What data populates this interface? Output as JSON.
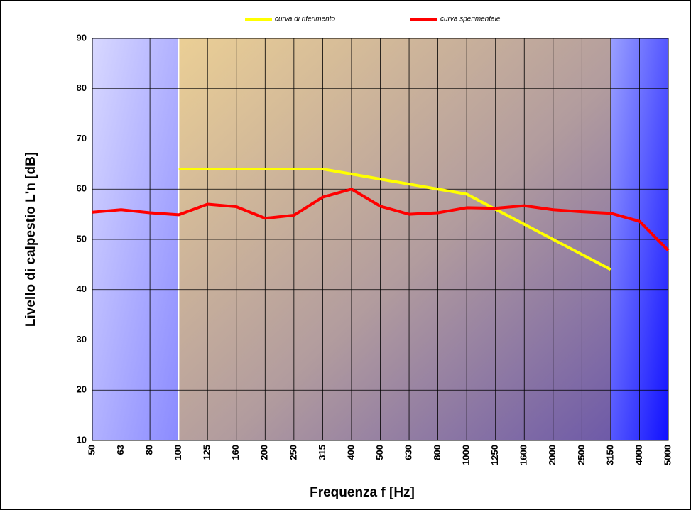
{
  "chart_data": {
    "type": "line",
    "x_label": "Frequenza f [Hz]",
    "y_label": "Livello di calpestio L'n [dB]",
    "categories": [
      "50",
      "63",
      "80",
      "100",
      "125",
      "160",
      "200",
      "250",
      "315",
      "400",
      "500",
      "630",
      "800",
      "1000",
      "1250",
      "1600",
      "2000",
      "2500",
      "3150",
      "4000",
      "5000"
    ],
    "series": [
      {
        "name": "curva di riferimento",
        "color": "#ffff00",
        "values": [
          null,
          null,
          null,
          64,
          64,
          64,
          64,
          64,
          64,
          63,
          62,
          61,
          60,
          59,
          56,
          53,
          50,
          47,
          44,
          null,
          null
        ]
      },
      {
        "name": "curva sperimentale",
        "color": "#ff0000",
        "values": [
          55.4,
          55.9,
          55.3,
          54.9,
          57.0,
          56.5,
          54.2,
          54.8,
          58.4,
          60.0,
          56.6,
          55.0,
          55.3,
          56.3,
          56.2,
          56.7,
          55.9,
          55.5,
          55.2,
          53.6,
          47.8
        ]
      }
    ],
    "ylim": [
      10,
      90
    ],
    "yticks": [
      10,
      20,
      30,
      40,
      50,
      60,
      70,
      80,
      90
    ],
    "grid": true,
    "legend": "top"
  }
}
